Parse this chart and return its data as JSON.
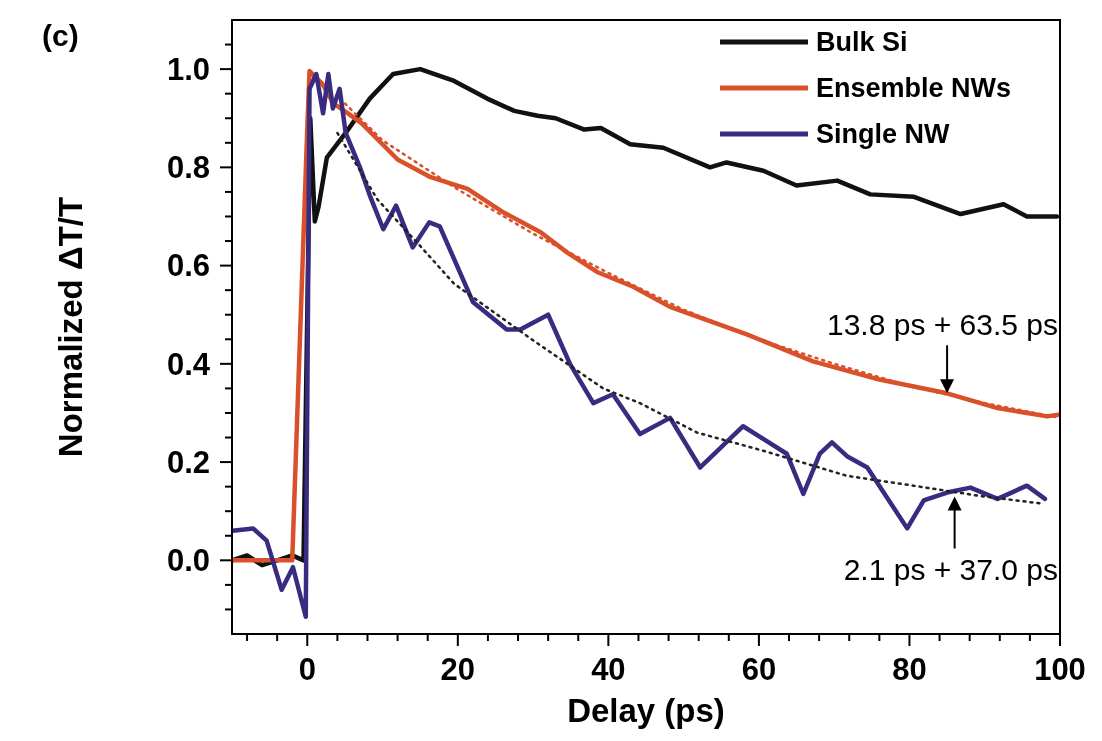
{
  "chart_data": {
    "type": "line",
    "xlabel": "Delay (ps)",
    "ylabel": "Normalized ΔT/T",
    "xlim": [
      -10,
      100
    ],
    "ylim": [
      -0.15,
      1.1
    ],
    "xticks": [
      {
        "value": -8,
        "label": null
      },
      {
        "value": -4,
        "label": null
      },
      0,
      {
        "value": 4,
        "label": null
      },
      {
        "value": 8,
        "label": null
      },
      {
        "value": 12,
        "label": null
      },
      {
        "value": 16,
        "label": null
      },
      20,
      {
        "value": 24,
        "label": null
      },
      {
        "value": 28,
        "label": null
      },
      {
        "value": 32,
        "label": null
      },
      {
        "value": 36,
        "label": null
      },
      40,
      {
        "value": 44,
        "label": null
      },
      {
        "value": 48,
        "label": null
      },
      {
        "value": 52,
        "label": null
      },
      {
        "value": 56,
        "label": null
      },
      60,
      {
        "value": 64,
        "label": null
      },
      {
        "value": 68,
        "label": null
      },
      {
        "value": 72,
        "label": null
      },
      {
        "value": 76,
        "label": null
      },
      80,
      {
        "value": 84,
        "label": null
      },
      {
        "value": 88,
        "label": null
      },
      {
        "value": 92,
        "label": null
      },
      {
        "value": 96,
        "label": null
      },
      100
    ],
    "yticks": [
      {
        "value": -0.1,
        "label": null
      },
      {
        "value": -0.05,
        "label": null
      },
      {
        "value": 0,
        "label": "0.0"
      },
      {
        "value": 0.05,
        "label": null
      },
      {
        "value": 0.1,
        "label": null
      },
      {
        "value": 0.15,
        "label": null
      },
      {
        "value": 0.2,
        "label": "0.2"
      },
      {
        "value": 0.25,
        "label": null
      },
      {
        "value": 0.3,
        "label": null
      },
      {
        "value": 0.35,
        "label": null
      },
      {
        "value": 0.4,
        "label": "0.4"
      },
      {
        "value": 0.45,
        "label": null
      },
      {
        "value": 0.5,
        "label": null
      },
      {
        "value": 0.55,
        "label": null
      },
      {
        "value": 0.6,
        "label": "0.6"
      },
      {
        "value": 0.65,
        "label": null
      },
      {
        "value": 0.7,
        "label": null
      },
      {
        "value": 0.75,
        "label": null
      },
      {
        "value": 0.8,
        "label": "0.8"
      },
      {
        "value": 0.85,
        "label": null
      },
      {
        "value": 0.9,
        "label": null
      },
      {
        "value": 0.95,
        "label": null
      },
      {
        "value": 1,
        "label": "1.0"
      },
      {
        "value": 1.05,
        "label": null
      }
    ],
    "grid": false,
    "legend": "top right",
    "line_style": "solid",
    "marker": "none",
    "series": [
      {
        "name": "Bulk Si",
        "color": "#111111",
        "x": [
          -10,
          -8,
          -6,
          -4,
          -2,
          -0.5,
          0,
          0.4,
          1,
          1.5,
          2.6,
          5.1,
          8.3,
          11.4,
          15,
          19.5,
          23.9,
          27.5,
          30.6,
          33,
          36.8,
          39,
          42.9,
          47.3,
          53.5,
          55.7,
          60.6,
          65,
          70.4,
          74.8,
          80.6,
          86.8,
          92.5,
          95.6,
          99.6
        ],
        "values": [
          0,
          0.01,
          -0.01,
          0,
          0.01,
          0,
          0.5,
          0.9,
          0.69,
          0.72,
          0.82,
          0.87,
          0.94,
          0.99,
          1.0,
          0.976,
          0.94,
          0.915,
          0.905,
          0.9,
          0.877,
          0.88,
          0.847,
          0.84,
          0.8,
          0.81,
          0.793,
          0.763,
          0.773,
          0.745,
          0.74,
          0.705,
          0.725,
          0.7,
          0.7
        ]
      },
      {
        "name": "Ensemble NWs",
        "color": "#d9502a",
        "x": [
          -10,
          -6,
          -2,
          0,
          0.3,
          2,
          3.5,
          5.4,
          7.2,
          12,
          16.4,
          21.3,
          26.1,
          31,
          34.5,
          38.5,
          43.3,
          48.2,
          58.4,
          67.2,
          76,
          85,
          91.7,
          98.3,
          100
        ],
        "values": [
          0,
          0,
          0,
          0.88,
          0.996,
          0.97,
          0.93,
          0.91,
          0.89,
          0.816,
          0.78,
          0.756,
          0.708,
          0.668,
          0.627,
          0.587,
          0.557,
          0.516,
          0.46,
          0.405,
          0.368,
          0.34,
          0.31,
          0.293,
          0.297
        ]
      },
      {
        "name": "Single NW",
        "color": "#3a2a80",
        "x": [
          -9.9,
          -7.2,
          -5.4,
          -3.4,
          -1.9,
          -0.2,
          0.3,
          1.2,
          2.1,
          2.8,
          3.4,
          4.3,
          5.1,
          7,
          8.3,
          10.1,
          11.8,
          14,
          16.2,
          17.6,
          22,
          26.5,
          28.3,
          32,
          34.9,
          38,
          40.6,
          44.2,
          48.2,
          52.2,
          57.9,
          63.7,
          65.9,
          68.1,
          69.7,
          71.7,
          74.4,
          79.7,
          81.9,
          85,
          88.1,
          91.7,
          95.6,
          98
        ],
        "values": [
          0.06,
          0.065,
          0.04,
          -0.06,
          -0.014,
          -0.115,
          0.96,
          0.99,
          0.91,
          0.99,
          0.92,
          0.96,
          0.87,
          0.8,
          0.743,
          0.674,
          0.722,
          0.637,
          0.688,
          0.68,
          0.526,
          0.47,
          0.47,
          0.5,
          0.4,
          0.32,
          0.338,
          0.257,
          0.29,
          0.189,
          0.273,
          0.217,
          0.135,
          0.217,
          0.24,
          0.212,
          0.189,
          0.065,
          0.122,
          0.138,
          0.148,
          0.125,
          0.152,
          0.125
        ]
      },
      {
        "color": "#d9502a",
        "line_style": "dotted",
        "x": [
          5,
          10,
          20,
          30,
          40,
          50,
          60,
          70,
          80,
          90,
          100
        ],
        "values": [
          0.93,
          0.855,
          0.755,
          0.665,
          0.585,
          0.51,
          0.45,
          0.4,
          0.355,
          0.32,
          0.29
        ]
      },
      {
        "color": "#222222",
        "line_style": "dotted",
        "x": [
          4,
          9.3,
          15,
          19.5,
          29.9,
          39.3,
          44.2,
          51.8,
          60.6,
          71.7,
          80.5,
          89.4,
          97.8
        ],
        "values": [
          0.87,
          0.735,
          0.64,
          0.563,
          0.449,
          0.35,
          0.32,
          0.26,
          0.223,
          0.172,
          0.152,
          0.131,
          0.115
        ]
      }
    ],
    "annotations": [
      "(c)",
      {
        "text": "13.8 ps + 63.5 ps",
        "x": 85,
        "y": 0.34
      },
      {
        "text": "2.1 ps + 37.0 ps",
        "x": 86,
        "y": 0.13
      }
    ]
  }
}
